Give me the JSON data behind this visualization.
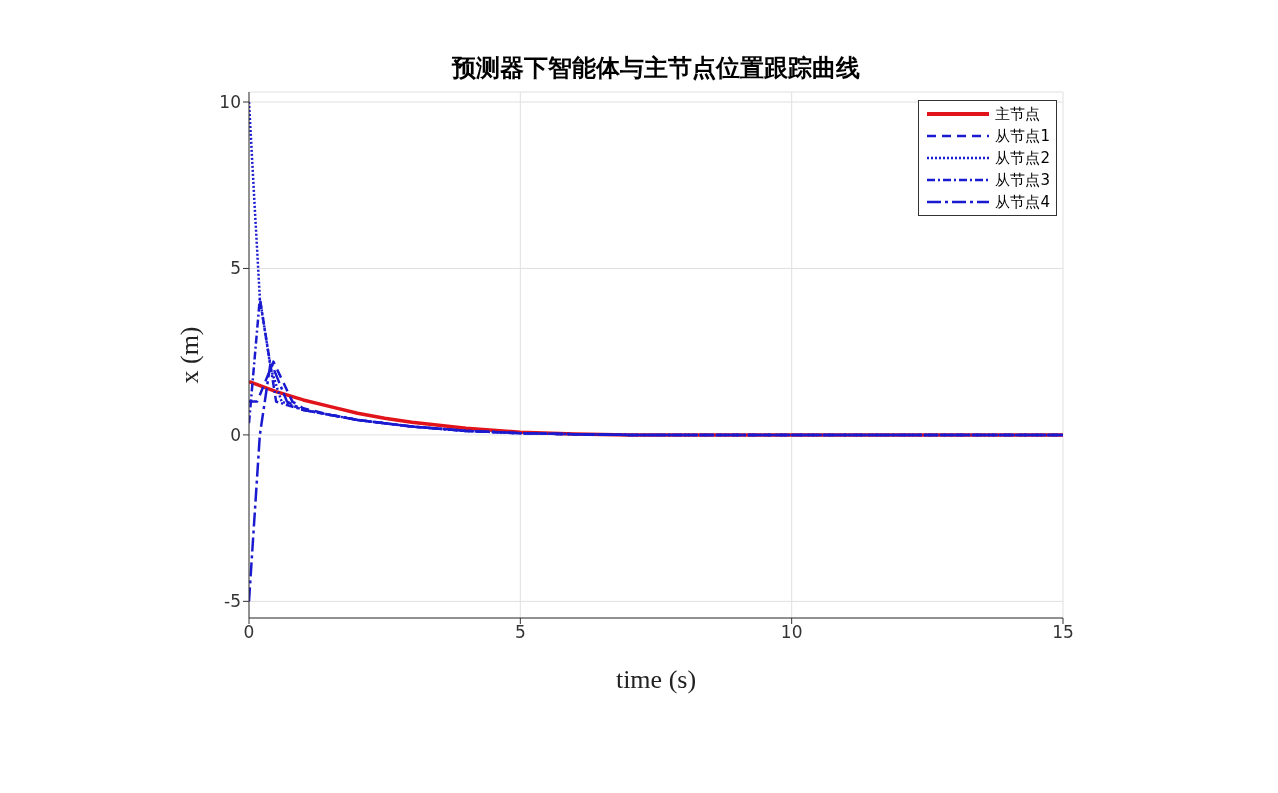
{
  "chart_data": {
    "type": "line",
    "title": "预测器下智能体与主节点位置跟踪曲线",
    "xlabel": "time (s)",
    "ylabel": "x (m)",
    "xlim": [
      0,
      15
    ],
    "xticks": [
      0,
      5,
      10,
      15
    ],
    "ylim": [
      -5.5,
      10.3
    ],
    "yticks": [
      -5,
      0,
      5,
      10
    ],
    "grid": true,
    "legend": "top right",
    "series": [
      {
        "name": "主节点",
        "color": "#e0141a",
        "line_style": "solid",
        "x": [
          0,
          0.5,
          1,
          1.5,
          2,
          2.5,
          3,
          4,
          5,
          6,
          7,
          15
        ],
        "values": [
          1.6,
          1.3,
          1.05,
          0.85,
          0.65,
          0.5,
          0.38,
          0.2,
          0.08,
          0.03,
          0,
          0
        ]
      },
      {
        "name": "从节点1",
        "color": "#1a1ad0",
        "line_style": "dashed",
        "x": [
          0,
          0.15,
          0.45,
          0.8,
          1,
          1.5,
          2,
          2.5,
          3,
          4,
          5,
          6,
          7,
          15
        ],
        "values": [
          1,
          1,
          2.2,
          1.0,
          0.8,
          0.6,
          0.45,
          0.35,
          0.25,
          0.12,
          0.05,
          0.02,
          0,
          0
        ]
      },
      {
        "name": "从节点2",
        "color": "#1a1ad0",
        "line_style": "dotted",
        "x": [
          0,
          0.1,
          0.2,
          0.4,
          0.6,
          1,
          1.5,
          2,
          2.5,
          3,
          4,
          5,
          6,
          7,
          15
        ],
        "values": [
          10,
          7,
          4.1,
          2.0,
          1.0,
          0.75,
          0.6,
          0.45,
          0.35,
          0.25,
          0.12,
          0.05,
          0.02,
          0,
          0
        ]
      },
      {
        "name": "从节点3",
        "color": "#1a1ad0",
        "line_style": "dashdot",
        "x": [
          0,
          0.2,
          0.5,
          0.7,
          1,
          1.5,
          2,
          2.5,
          3,
          4,
          5,
          6,
          7,
          15
        ],
        "values": [
          0.35,
          4.1,
          1.0,
          0.9,
          0.75,
          0.6,
          0.45,
          0.35,
          0.25,
          0.12,
          0.05,
          0.02,
          0,
          0
        ]
      },
      {
        "name": "从节点4",
        "color": "#1a1ad0",
        "line_style": "longdashdot",
        "x": [
          0,
          0.2,
          0.4,
          0.7,
          1,
          1.5,
          2,
          2.5,
          3,
          4,
          5,
          6,
          7,
          15
        ],
        "values": [
          -5,
          0,
          2.2,
          1.0,
          0.75,
          0.6,
          0.45,
          0.35,
          0.25,
          0.12,
          0.05,
          0.02,
          0,
          0
        ]
      }
    ]
  }
}
